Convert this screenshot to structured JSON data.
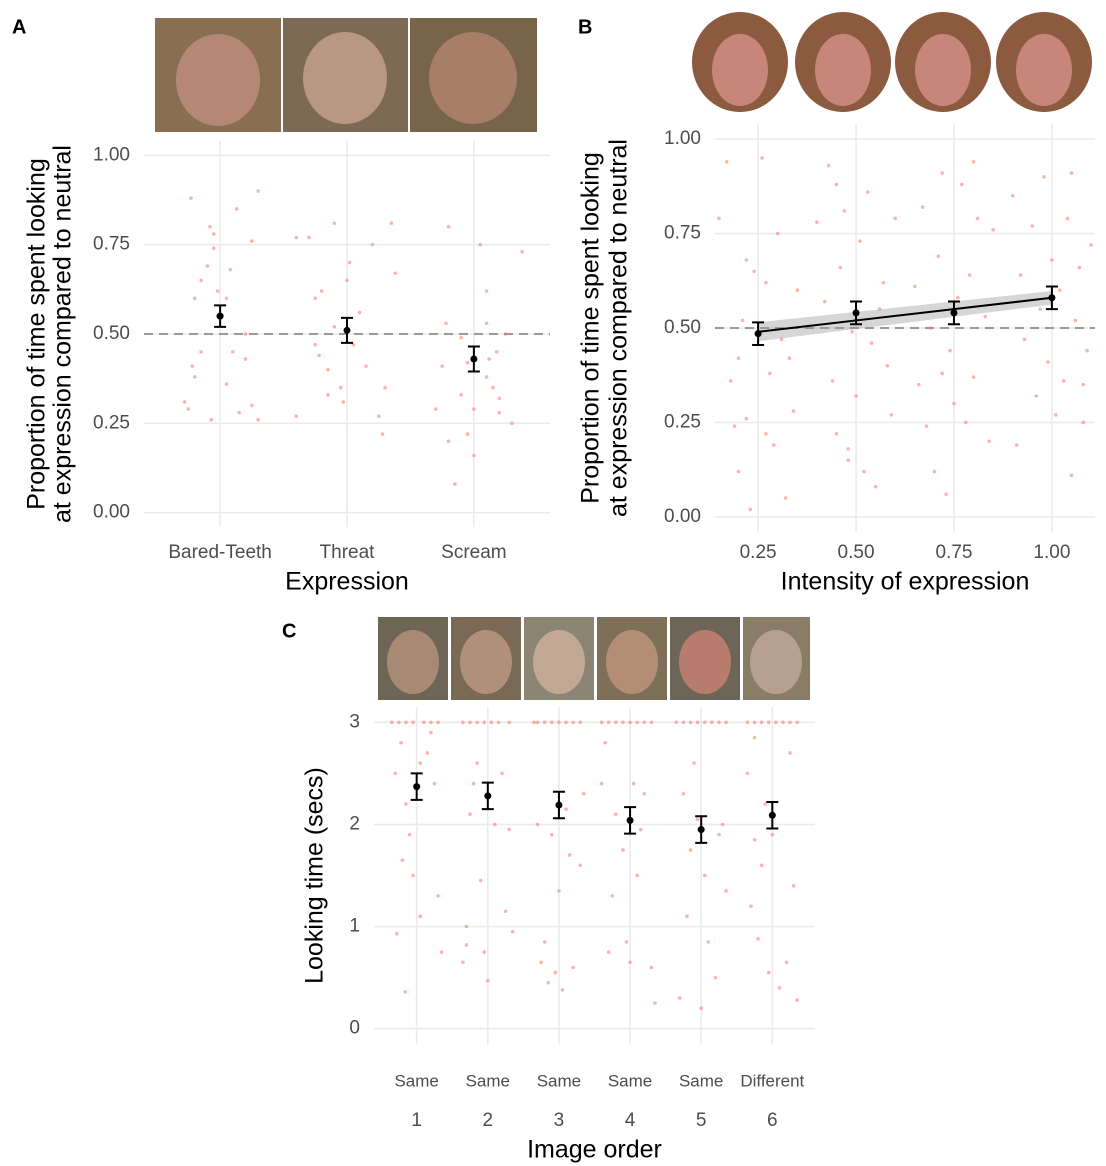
{
  "chart_data": [
    {
      "type": "scatter",
      "panel": "A",
      "xlabel": "Expression",
      "ylabel": [
        "Proportion of time spent looking",
        "at expression compared to neutral"
      ],
      "xlim": [
        0.4,
        3.6
      ],
      "ylim": [
        -0.04,
        1.04
      ],
      "xticks": [
        {
          "value": 1,
          "label": "Bared-Teeth"
        },
        {
          "value": 2,
          "label": "Threat"
        },
        {
          "value": 3,
          "label": "Scream"
        }
      ],
      "yticks": [
        {
          "value": 0,
          "label": "0.00"
        },
        {
          "value": 0.25,
          "label": "0.25"
        },
        {
          "value": 0.5,
          "label": "0.50"
        },
        {
          "value": 0.75,
          "label": "0.75"
        },
        {
          "value": 1,
          "label": "1.00"
        }
      ],
      "grid": true,
      "hline": 0.5,
      "points": {
        "color": "#f8766d",
        "x": [
          0.77,
          0.8,
          0.72,
          0.75,
          0.78,
          0.8,
          0.85,
          0.9,
          0.95,
          0.98,
          0.93,
          1.05,
          1.15,
          0.95,
          0.92,
          1.13,
          1.05,
          0.98,
          1.1,
          1.2,
          1.25,
          1.3,
          1.2,
          1.25,
          1.3,
          0.85,
          1.08,
          1.6,
          1.6,
          1.7,
          1.75,
          1.78,
          1.8,
          1.85,
          1.85,
          1.9,
          1.9,
          1.95,
          1.97,
          2.0,
          2.02,
          2.05,
          2.1,
          2.15,
          2.2,
          2.25,
          2.28,
          2.3,
          2.35,
          2.38,
          1.75,
          2.7,
          2.75,
          2.78,
          2.8,
          2.85,
          2.9,
          2.8,
          2.95,
          2.95,
          3.0,
          3.0,
          3.05,
          3.1,
          3.1,
          3.15,
          3.2,
          3.2,
          3.25,
          3.3,
          3.1,
          3.18,
          3.38,
          2.9,
          3.12
        ],
        "values": [
          0.88,
          0.6,
          0.31,
          0.29,
          0.41,
          0.38,
          0.65,
          0.69,
          0.74,
          0.62,
          0.26,
          0.36,
          0.28,
          0.78,
          0.8,
          0.85,
          0.6,
          0.55,
          0.45,
          0.5,
          0.76,
          0.9,
          0.43,
          0.3,
          0.26,
          0.45,
          0.68,
          0.27,
          0.77,
          0.77,
          0.6,
          0.44,
          0.62,
          0.4,
          0.33,
          0.52,
          0.81,
          0.35,
          0.31,
          0.65,
          0.7,
          0.47,
          0.56,
          0.41,
          0.75,
          0.27,
          0.22,
          0.35,
          0.81,
          0.67,
          0.47,
          0.29,
          0.41,
          0.53,
          0.2,
          0.08,
          0.33,
          0.8,
          0.42,
          0.22,
          0.16,
          0.29,
          0.75,
          0.62,
          0.38,
          0.35,
          0.32,
          0.28,
          0.5,
          0.25,
          0.53,
          0.45,
          0.73,
          0.49,
          0.43
        ]
      },
      "means": {
        "color": "#000000",
        "x": [
          1,
          2,
          3
        ],
        "values": [
          0.55,
          0.51,
          0.43
        ],
        "errors": [
          0.03,
          0.035,
          0.035
        ]
      }
    },
    {
      "type": "scatter",
      "panel": "B",
      "xlabel": "Intensity of expression",
      "ylabel": [
        "Proportion of time spent looking",
        "at expression compared to neutral"
      ],
      "xlim": [
        0.14,
        1.11
      ],
      "ylim": [
        -0.04,
        1.04
      ],
      "xticks": [
        {
          "value": 0.25,
          "label": "0.25"
        },
        {
          "value": 0.5,
          "label": "0.50"
        },
        {
          "value": 0.75,
          "label": "0.75"
        },
        {
          "value": 1,
          "label": "1.00"
        }
      ],
      "yticks": [
        {
          "value": 0,
          "label": "0.00"
        },
        {
          "value": 0.25,
          "label": "0.25"
        },
        {
          "value": 0.5,
          "label": "0.50"
        },
        {
          "value": 0.75,
          "label": "0.75"
        },
        {
          "value": 1,
          "label": "1.00"
        }
      ],
      "grid": true,
      "hline": 0.5,
      "points": {
        "color": "#f8766d",
        "x": [
          0.15,
          0.17,
          0.18,
          0.19,
          0.2,
          0.21,
          0.22,
          0.23,
          0.24,
          0.26,
          0.27,
          0.28,
          0.29,
          0.3,
          0.31,
          0.32,
          0.33,
          0.34,
          0.22,
          0.27,
          0.2,
          0.35,
          0.4,
          0.42,
          0.43,
          0.44,
          0.45,
          0.46,
          0.47,
          0.48,
          0.49,
          0.5,
          0.51,
          0.52,
          0.53,
          0.54,
          0.55,
          0.57,
          0.58,
          0.59,
          0.6,
          0.48,
          0.56,
          0.45,
          0.65,
          0.66,
          0.67,
          0.68,
          0.69,
          0.7,
          0.71,
          0.72,
          0.73,
          0.74,
          0.75,
          0.76,
          0.77,
          0.78,
          0.79,
          0.8,
          0.81,
          0.83,
          0.84,
          0.85,
          0.72,
          0.8,
          0.9,
          0.91,
          0.92,
          0.93,
          0.95,
          0.96,
          0.97,
          0.98,
          0.99,
          1.0,
          1.01,
          1.02,
          1.03,
          1.04,
          1.05,
          1.06,
          1.07,
          1.08,
          1.09,
          1.1,
          1.05,
          1.08
        ],
        "values": [
          0.79,
          0.94,
          0.36,
          0.24,
          0.12,
          0.52,
          0.26,
          0.02,
          0.65,
          0.95,
          0.62,
          0.38,
          0.19,
          0.75,
          0.47,
          0.05,
          0.42,
          0.28,
          0.68,
          0.22,
          0.42,
          0.6,
          0.78,
          0.57,
          0.93,
          0.36,
          0.22,
          0.66,
          0.81,
          0.15,
          0.49,
          0.32,
          0.73,
          0.12,
          0.86,
          0.46,
          0.08,
          0.62,
          0.4,
          0.27,
          0.79,
          0.18,
          0.55,
          0.88,
          0.61,
          0.35,
          0.82,
          0.24,
          0.5,
          0.12,
          0.69,
          0.91,
          0.06,
          0.44,
          0.3,
          0.58,
          0.88,
          0.25,
          0.64,
          0.37,
          0.79,
          0.53,
          0.2,
          0.76,
          0.38,
          0.94,
          0.85,
          0.19,
          0.64,
          0.47,
          0.77,
          0.32,
          0.55,
          0.9,
          0.41,
          0.68,
          0.27,
          0.6,
          0.36,
          0.79,
          0.11,
          0.52,
          0.66,
          0.25,
          0.44,
          0.72,
          0.91,
          0.35
        ]
      },
      "fit": {
        "color": "#000000",
        "x": [
          0.25,
          1.0
        ],
        "values": [
          0.49,
          0.58
        ],
        "lower": [
          0.465,
          0.562
        ],
        "upper": [
          0.515,
          0.598
        ]
      },
      "means": {
        "color": "#000000",
        "x": [
          0.25,
          0.5,
          0.75,
          1.0
        ],
        "values": [
          0.485,
          0.54,
          0.54,
          0.58
        ],
        "errors": [
          0.03,
          0.03,
          0.03,
          0.03
        ]
      }
    },
    {
      "type": "scatter",
      "panel": "C",
      "xlabel": "Image order",
      "ylabel": [
        "Looking time (secs)"
      ],
      "xlim": [
        0.4,
        6.6
      ],
      "ylim": [
        -0.15,
        3.15
      ],
      "xticks": [
        1,
        2,
        3,
        4,
        5,
        6
      ],
      "tick_groups": [
        "Same",
        "Same",
        "Same",
        "Same",
        "Same",
        "Different"
      ],
      "yticks": [
        0,
        1,
        2,
        3
      ],
      "grid": true,
      "points": {
        "color": "#f8766d",
        "x": [
          0.65,
          0.75,
          0.85,
          0.95,
          1.1,
          1.2,
          1.3,
          0.7,
          0.78,
          0.85,
          0.9,
          0.72,
          0.84,
          1.05,
          1.15,
          1.25,
          1.35,
          0.95,
          1.3,
          1.2,
          0.8,
          1.05,
          1.65,
          1.75,
          1.85,
          1.95,
          2.05,
          2.15,
          2.3,
          1.65,
          1.7,
          1.75,
          1.85,
          1.9,
          1.95,
          2.0,
          2.1,
          2.2,
          2.25,
          2.35,
          1.8,
          2.3,
          1.7,
          2.65,
          2.7,
          2.8,
          2.9,
          3.0,
          3.1,
          3.2,
          3.3,
          2.7,
          2.75,
          2.8,
          2.85,
          2.95,
          3.0,
          3.1,
          3.15,
          3.2,
          3.3,
          3.35,
          2.9,
          3.05,
          3.6,
          3.7,
          3.8,
          3.9,
          4.0,
          4.1,
          4.2,
          4.3,
          3.6,
          3.7,
          3.75,
          3.8,
          3.9,
          3.95,
          4.0,
          4.05,
          4.1,
          4.2,
          4.3,
          4.35,
          3.65,
          4.15,
          4.65,
          4.75,
          4.85,
          4.95,
          5.05,
          5.15,
          5.25,
          5.35,
          4.7,
          4.75,
          4.8,
          4.85,
          4.9,
          5.0,
          5.05,
          5.1,
          5.2,
          5.25,
          5.3,
          5.35,
          4.95,
          5.65,
          5.75,
          5.85,
          5.95,
          6.05,
          6.15,
          6.25,
          6.35,
          5.65,
          5.7,
          5.75,
          5.8,
          5.85,
          5.9,
          5.95,
          6.0,
          6.1,
          6.2,
          6.25,
          6.3,
          6.35,
          5.75
        ],
        "values": [
          3,
          3,
          3,
          3,
          3,
          3,
          3,
          2.5,
          2.8,
          2.2,
          1.9,
          0.93,
          0.36,
          2.6,
          2.7,
          2.4,
          0.75,
          1.5,
          1.3,
          2.9,
          1.65,
          1.1,
          3,
          3,
          3,
          3,
          3,
          3,
          3,
          0.65,
          1.0,
          2.1,
          2.6,
          1.45,
          0.75,
          0.47,
          2.0,
          2.5,
          1.15,
          0.95,
          2.4,
          1.95,
          0.82,
          3,
          3,
          3,
          3,
          3,
          3,
          3,
          3,
          2.0,
          0.65,
          0.85,
          0.45,
          0.55,
          1.35,
          2.15,
          1.7,
          0.6,
          1.6,
          2.3,
          1.9,
          0.38,
          3,
          3,
          3,
          3,
          3,
          3,
          3,
          3,
          2.4,
          0.75,
          1.3,
          2.1,
          1.75,
          0.85,
          0.65,
          2.4,
          1.5,
          2.3,
          0.6,
          0.25,
          2.8,
          1.95,
          3,
          3,
          3,
          3,
          3,
          3,
          3,
          3,
          0.3,
          2.3,
          1.1,
          1.75,
          2.6,
          0.2,
          1.5,
          0.85,
          0.5,
          1.9,
          2.0,
          1.35,
          2.05,
          3,
          3,
          3,
          3,
          3,
          3,
          3,
          3,
          2.5,
          1.2,
          2.85,
          0.88,
          1.6,
          2.2,
          0.55,
          1.9,
          0.4,
          0.65,
          2.7,
          1.4,
          0.28,
          1.85
        ]
      },
      "means": {
        "color": "#000000",
        "x": [
          1,
          2,
          3,
          4,
          5,
          6
        ],
        "values": [
          2.37,
          2.28,
          2.19,
          2.04,
          1.95,
          2.09
        ],
        "errors": [
          0.13,
          0.13,
          0.13,
          0.13,
          0.13,
          0.13
        ]
      }
    }
  ]
}
